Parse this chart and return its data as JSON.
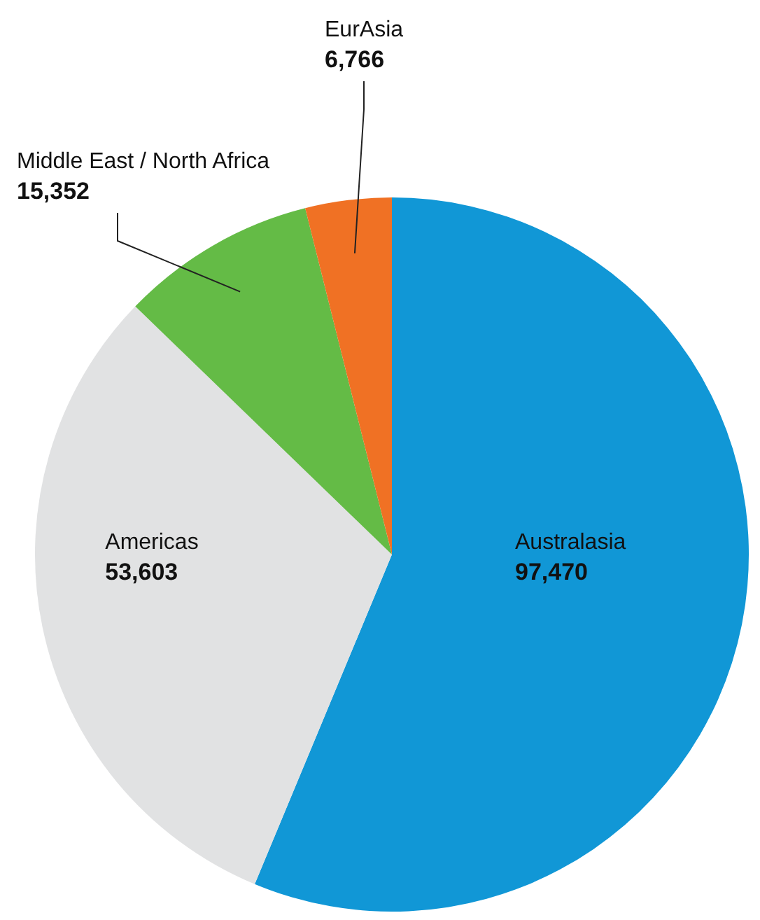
{
  "chart_data": {
    "type": "pie",
    "categories": [
      "Australasia",
      "Americas",
      "Middle East / North Africa",
      "EurAsia"
    ],
    "values": [
      97470,
      53603,
      15352,
      6766
    ],
    "colors": [
      "#1197d6",
      "#e1e2e3",
      "#64bb46",
      "#f07124"
    ],
    "value_labels": [
      "97,470",
      "53,603",
      "15,352",
      "6,766"
    ],
    "legend": false
  }
}
